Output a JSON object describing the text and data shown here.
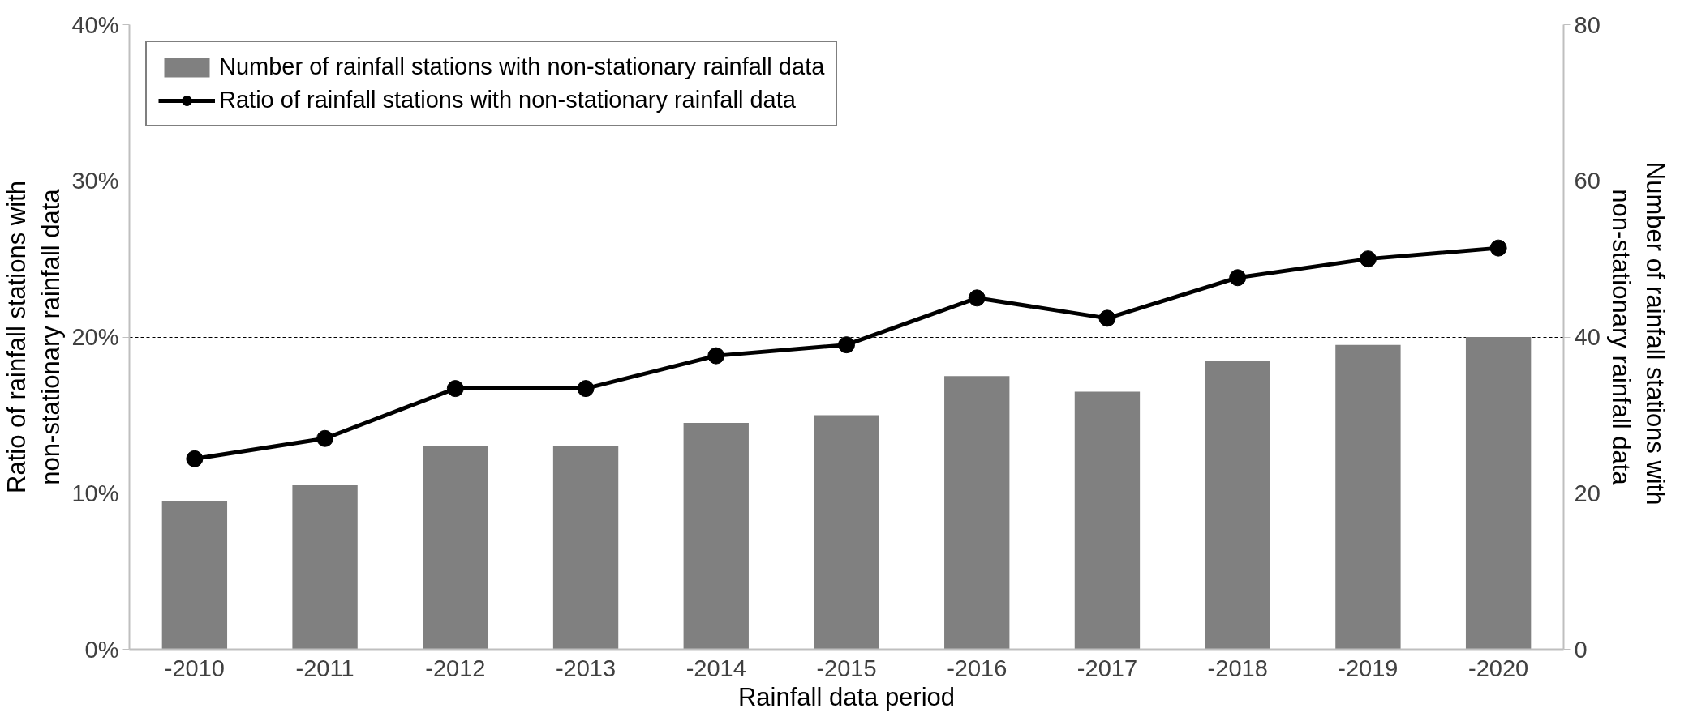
{
  "chart_data": {
    "type": "bar",
    "xlabel": "Rainfall data period",
    "ylabel": "Ratio of rainfall stations with\nnon-stationary rainfall data",
    "y2label": "Number  of rainfall stations with\nnon-stationary rainfall data",
    "categories": [
      "-2010",
      "-2011",
      "-2012",
      "-2013",
      "-2014",
      "-2015",
      "-2016",
      "-2017",
      "-2018",
      "-2019",
      "-2020"
    ],
    "series": [
      {
        "name": "Number of rainfall stations with non-stationary rainfall data",
        "axis": "y2",
        "color": "#808080",
        "values": [
          19,
          21,
          26,
          26,
          29,
          30,
          35,
          33,
          37,
          39,
          40
        ]
      },
      {
        "name": "Ratio of rainfall stations with non-stationary rainfall data",
        "type": "line",
        "color": "#000000",
        "marker": "circle",
        "line_style": "solid",
        "values": [
          12.2,
          13.5,
          16.7,
          16.7,
          18.8,
          19.5,
          22.5,
          21.2,
          23.8,
          25.0,
          25.7
        ]
      }
    ],
    "ylim": [
      0,
      40
    ],
    "yticks": [
      {
        "value": 0,
        "label": "0%"
      },
      {
        "value": 10,
        "label": "10%"
      },
      {
        "value": 20,
        "label": "20%"
      },
      {
        "value": 30,
        "label": "30%"
      },
      {
        "value": 40,
        "label": "40%"
      }
    ],
    "y2lim": [
      0,
      80
    ],
    "y2ticks": [
      0,
      20,
      40,
      60,
      80
    ],
    "grid": "y",
    "legend": "top left"
  }
}
